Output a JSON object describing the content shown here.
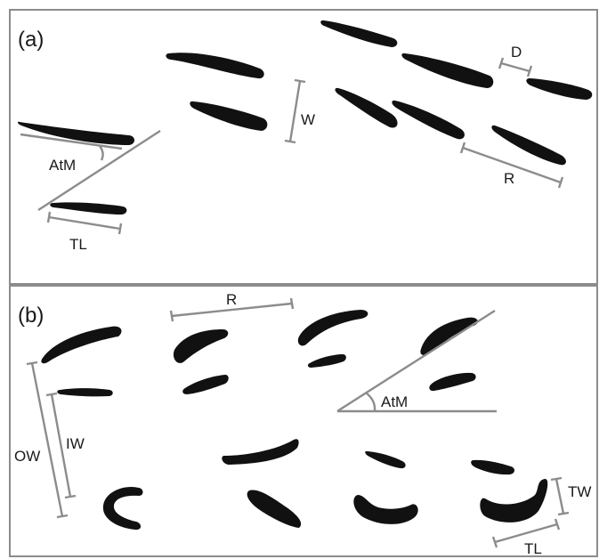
{
  "panels": {
    "a": {
      "label": "(a)",
      "measures": {
        "atm": "AtM",
        "tl": "TL",
        "w": "W",
        "r": "R",
        "d": "D"
      }
    },
    "b": {
      "label": "(b)",
      "measures": {
        "r": "R",
        "atm": "AtM",
        "ow": "OW",
        "iw": "IW",
        "tw": "TW",
        "tl": "TL"
      }
    }
  },
  "colors": {
    "shape": "#111111",
    "measure_line": "#8c8c8c",
    "frame": "#8c8c8c",
    "text": "#1a1a1a"
  }
}
